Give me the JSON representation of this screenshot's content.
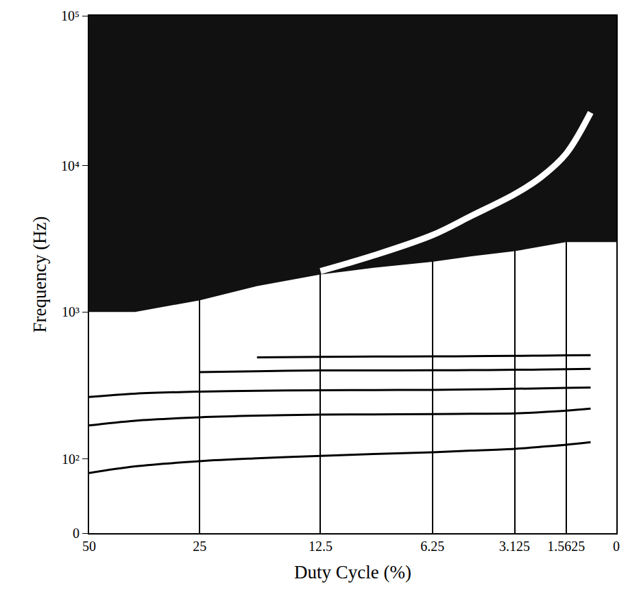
{
  "chart_data": {
    "type": "line",
    "xlabel": "Duty Cycle (%)",
    "ylabel": "Frequency (Hz)",
    "x": [
      50,
      37.5,
      25,
      18,
      12.5,
      9,
      6.25,
      4.5,
      3.125,
      2.2,
      1.5625,
      0.8,
      0
    ],
    "series": [
      {
        "type": "area",
        "color": "#111111",
        "values": [
          1000,
          1000,
          1200,
          1500,
          1800,
          2000,
          2200,
          2400,
          2600,
          2800,
          3000,
          3000,
          3000
        ]
      },
      {
        "type": "line",
        "color": "#ffffff",
        "values": [
          null,
          null,
          null,
          null,
          1900,
          2430,
          3350,
          4530,
          6370,
          8300,
          12000,
          22600,
          null
        ]
      },
      {
        "type": "line",
        "color": "#000000",
        "values": [
          81,
          90,
          97,
          101,
          105,
          108,
          111,
          114,
          117,
          121,
          125,
          130,
          null
        ]
      },
      {
        "type": "line",
        "color": "#000000",
        "values": [
          169,
          182,
          192,
          197,
          200,
          201,
          202,
          203,
          204,
          208,
          213,
          220,
          null
        ]
      },
      {
        "type": "line",
        "color": "#000000",
        "values": [
          264,
          278,
          287,
          291,
          293,
          294,
          295,
          297,
          300,
          302,
          304,
          306,
          null
        ]
      },
      {
        "type": "line",
        "color": "#000000",
        "values": [
          null,
          null,
          390,
          395,
          400,
          400,
          401,
          402,
          404,
          405,
          408,
          410,
          null
        ]
      },
      {
        "type": "line",
        "color": "#000000",
        "values": [
          null,
          null,
          null,
          490,
          495,
          497,
          498,
          500,
          502,
          504,
          506,
          508,
          null
        ]
      }
    ],
    "xlim": [
      50,
      0
    ],
    "ylim": [
      0,
      100000
    ],
    "xticks": [
      50,
      25,
      12.5,
      6.25,
      3.125,
      1.5625,
      0
    ],
    "yticks": [
      0,
      {
        "value": 100,
        "label": "10²"
      },
      {
        "value": 1000,
        "label": "10³"
      },
      {
        "value": 10000,
        "label": "10⁴"
      },
      {
        "value": 100000,
        "label": "10⁵"
      }
    ],
    "grid": "x"
  }
}
